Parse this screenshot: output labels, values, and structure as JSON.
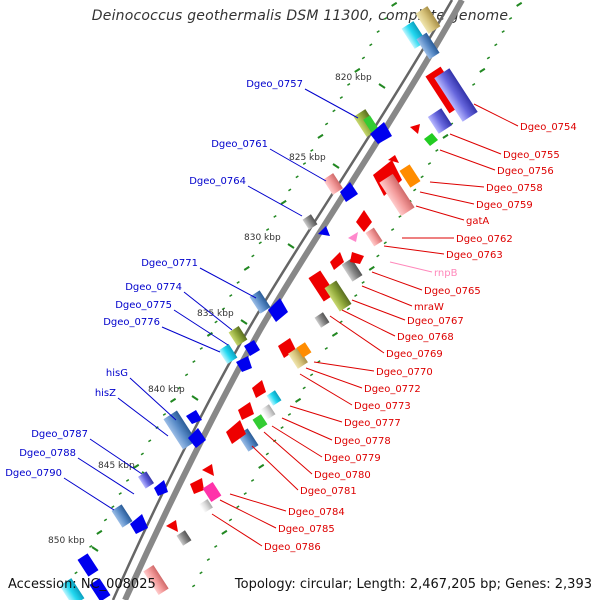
{
  "title": "Deinococcus geothermalis DSM 11300, complete genome",
  "footer": {
    "accession": "Accession: NC_008025",
    "summary": "Topology: circular; Length: 2,467,205 bp; Genes: 2,393"
  },
  "colors": {
    "left_label": "#0000cc",
    "right_label": "#dd0000",
    "rna_label": "#ff88bb",
    "scale": "#228822",
    "backbone": "#888888"
  },
  "scale_ticks": [
    {
      "label": "820 kbp",
      "pos": 820
    },
    {
      "label": "825 kbp",
      "pos": 825
    },
    {
      "label": "830 kbp",
      "pos": 830
    },
    {
      "label": "835 kbp",
      "pos": 835
    },
    {
      "label": "840 kbp",
      "pos": 840
    },
    {
      "label": "845 kbp",
      "pos": 845
    },
    {
      "label": "850 kbp",
      "pos": 850
    }
  ],
  "left_labels": [
    {
      "text": "Dgeo_0757"
    },
    {
      "text": "Dgeo_0761"
    },
    {
      "text": "Dgeo_0764"
    },
    {
      "text": "Dgeo_0771"
    },
    {
      "text": "Dgeo_0774"
    },
    {
      "text": "Dgeo_0775"
    },
    {
      "text": "Dgeo_0776"
    },
    {
      "text": "hisG"
    },
    {
      "text": "hisZ"
    },
    {
      "text": "Dgeo_0787"
    },
    {
      "text": "Dgeo_0788"
    },
    {
      "text": "Dgeo_0790"
    }
  ],
  "right_labels": [
    {
      "text": "Dgeo_0754"
    },
    {
      "text": "Dgeo_0755"
    },
    {
      "text": "Dgeo_0756"
    },
    {
      "text": "Dgeo_0758"
    },
    {
      "text": "Dgeo_0759"
    },
    {
      "text": "gatA"
    },
    {
      "text": "Dgeo_0762"
    },
    {
      "text": "Dgeo_0763"
    },
    {
      "text": "rnpB"
    },
    {
      "text": "Dgeo_0765"
    },
    {
      "text": "mraW"
    },
    {
      "text": "Dgeo_0767"
    },
    {
      "text": "Dgeo_0768"
    },
    {
      "text": "Dgeo_0769"
    },
    {
      "text": "Dgeo_0770"
    },
    {
      "text": "Dgeo_0772"
    },
    {
      "text": "Dgeo_0773"
    },
    {
      "text": "Dgeo_0777"
    },
    {
      "text": "Dgeo_0778"
    },
    {
      "text": "Dgeo_0779"
    },
    {
      "text": "Dgeo_0780"
    },
    {
      "text": "Dgeo_0781"
    },
    {
      "text": "Dgeo_0784"
    },
    {
      "text": "Dgeo_0785"
    },
    {
      "text": "Dgeo_0786"
    }
  ]
}
